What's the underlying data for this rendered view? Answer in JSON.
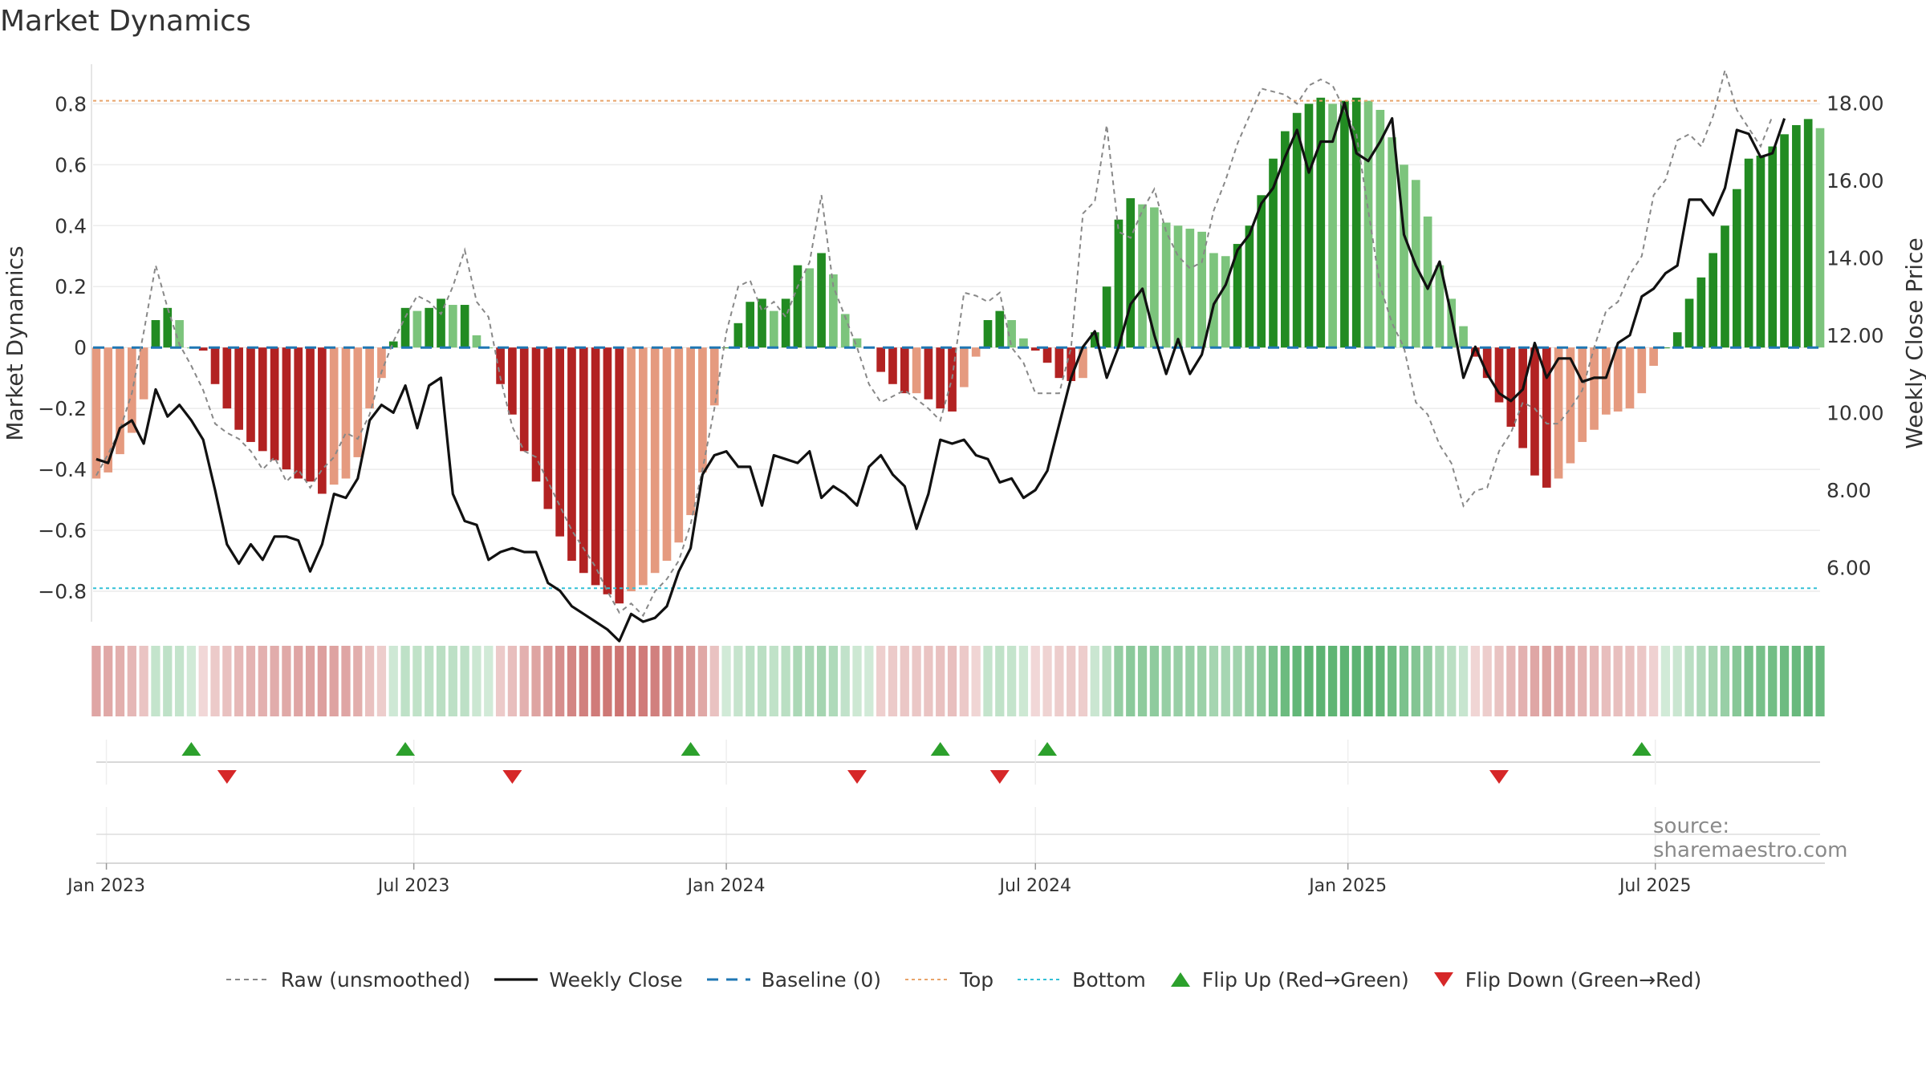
{
  "title": "Market Dynamics",
  "source": "source: sharemaestro.com",
  "colors": {
    "bar_green_dark": "#228b22",
    "bar_green_light": "#7cc47c",
    "bar_red_dark": "#b22222",
    "bar_red_light": "#e59a7f",
    "raw_line": "#888888",
    "close_line": "#111111",
    "baseline": "#1f77b4",
    "top_line": "#e8a46a",
    "bottom_line": "#33c0d6",
    "flip_up": "#2ca02c",
    "flip_down": "#d62728"
  },
  "legend": [
    {
      "key": "raw",
      "label": "Raw (unsmoothed)"
    },
    {
      "key": "close",
      "label": "Weekly Close"
    },
    {
      "key": "baseline",
      "label": "Baseline (0)"
    },
    {
      "key": "top",
      "label": "Top"
    },
    {
      "key": "bottom",
      "label": "Bottom"
    },
    {
      "key": "flipup",
      "label": "Flip Up (Red→Green)"
    },
    {
      "key": "flipdown",
      "label": "Flip Down (Green→Red)"
    }
  ],
  "chart_data": {
    "type": "bar",
    "title": "Market Dynamics",
    "ylabel": "Market Dynamics",
    "y2label": "Weekly Close Price",
    "ylim": [
      -0.9,
      0.93
    ],
    "y2lim": [
      4.6,
      19.0
    ],
    "yticks": [
      "0.8",
      "0.6",
      "0.4",
      "0.2",
      "0",
      "−0.2",
      "−0.4",
      "−0.6",
      "−0.8"
    ],
    "ytick_values": [
      0.8,
      0.6,
      0.4,
      0.2,
      0,
      -0.2,
      -0.4,
      -0.6,
      -0.8
    ],
    "y2ticks": [
      "18.00",
      "16.00",
      "14.00",
      "12.00",
      "10.00",
      "8.00",
      "6.00"
    ],
    "y2tick_values": [
      18,
      16,
      14,
      12,
      10,
      8,
      6
    ],
    "x_start": "2022-12-26",
    "x_step_days": 7,
    "x_domain": [
      "2022-12-27",
      "2025-10-06"
    ],
    "xticks": [
      {
        "label": "Jan 2023",
        "date": "2023-01-01"
      },
      {
        "label": "Jul 2023",
        "date": "2023-07-01"
      },
      {
        "label": "Jan 2024",
        "date": "2024-01-01"
      },
      {
        "label": "Jul 2024",
        "date": "2024-07-01"
      },
      {
        "label": "Jan 2025",
        "date": "2025-01-01"
      },
      {
        "label": "Jul 2025",
        "date": "2025-07-01"
      }
    ],
    "top": 0.81,
    "bottom": -0.79,
    "baseline": 0,
    "series": [
      {
        "name": "Raw (unsmoothed)",
        "values": [
          -0.42,
          -0.35,
          -0.27,
          -0.15,
          0.05,
          0.27,
          0.13,
          0.01,
          -0.06,
          -0.14,
          -0.25,
          -0.28,
          -0.3,
          -0.34,
          -0.4,
          -0.36,
          -0.44,
          -0.4,
          -0.46,
          -0.4,
          -0.36,
          -0.28,
          -0.3,
          -0.22,
          -0.08,
          0.02,
          0.1,
          0.17,
          0.15,
          0.11,
          0.2,
          0.32,
          0.15,
          0.1,
          -0.1,
          -0.26,
          -0.34,
          -0.36,
          -0.44,
          -0.52,
          -0.6,
          -0.66,
          -0.72,
          -0.8,
          -0.87,
          -0.84,
          -0.88,
          -0.8,
          -0.76,
          -0.7,
          -0.58,
          -0.4,
          -0.2,
          0.05,
          0.2,
          0.22,
          0.12,
          0.15,
          0.1,
          0.2,
          0.28,
          0.5,
          0.2,
          0.1,
          0.0,
          -0.12,
          -0.18,
          -0.16,
          -0.14,
          -0.17,
          -0.2,
          -0.24,
          -0.1,
          0.18,
          0.17,
          0.15,
          0.18,
          0.0,
          -0.05,
          -0.15,
          -0.15,
          -0.15,
          0.0,
          0.44,
          0.48,
          0.73,
          0.38,
          0.36,
          0.45,
          0.52,
          0.38,
          0.3,
          0.26,
          0.28,
          0.45,
          0.55,
          0.67,
          0.76,
          0.85,
          0.84,
          0.83,
          0.8,
          0.86,
          0.88,
          0.86,
          0.78,
          0.7,
          0.45,
          0.2,
          0.08,
          0.0,
          -0.18,
          -0.22,
          -0.32,
          -0.38,
          -0.52,
          -0.47,
          -0.46,
          -0.34,
          -0.28,
          -0.18,
          -0.2,
          -0.25,
          -0.25,
          -0.2,
          -0.14,
          0.0,
          0.12,
          0.15,
          0.24,
          0.3,
          0.5,
          0.55,
          0.68,
          0.7,
          0.66,
          0.76,
          0.91,
          0.78,
          0.72,
          0.66,
          0.76
        ]
      },
      {
        "name": "Weekly Close",
        "values": [
          8.8,
          8.7,
          9.6,
          9.8,
          9.2,
          10.6,
          9.9,
          10.2,
          9.8,
          9.3,
          8.0,
          6.6,
          6.1,
          6.6,
          6.2,
          6.8,
          6.8,
          6.7,
          5.9,
          6.6,
          7.9,
          7.8,
          8.3,
          9.8,
          10.2,
          10.0,
          10.7,
          9.6,
          10.7,
          10.9,
          7.9,
          7.2,
          7.1,
          6.2,
          6.4,
          6.5,
          6.4,
          6.4,
          5.6,
          5.4,
          5.0,
          4.8,
          4.6,
          4.4,
          4.1,
          4.8,
          4.6,
          4.7,
          5.0,
          5.9,
          6.5,
          8.4,
          8.9,
          9.0,
          8.6,
          8.6,
          7.6,
          8.9,
          8.8,
          8.7,
          9.0,
          7.8,
          8.1,
          7.9,
          7.6,
          8.6,
          8.9,
          8.4,
          8.1,
          7.0,
          7.9,
          9.3,
          9.2,
          9.3,
          8.9,
          8.8,
          8.2,
          8.3,
          7.8,
          8.0,
          8.5,
          9.7,
          10.9,
          11.7,
          12.1,
          10.9,
          11.7,
          12.8,
          13.2,
          12.0,
          11.0,
          11.9,
          11.0,
          11.5,
          12.8,
          13.3,
          14.2,
          14.6,
          15.4,
          15.8,
          16.6,
          17.3,
          16.2,
          17.0,
          17.0,
          18.0,
          16.7,
          16.5,
          17.0,
          17.6,
          14.6,
          13.8,
          13.2,
          13.9,
          12.5,
          10.9,
          11.7,
          11.0,
          10.5,
          10.3,
          10.6,
          11.8,
          10.9,
          11.4,
          11.4,
          10.8,
          10.9,
          10.9,
          11.8,
          12.0,
          13.0,
          13.2,
          13.6,
          13.8,
          15.5,
          15.5,
          15.1,
          15.8,
          17.3,
          17.2,
          16.6,
          16.7,
          17.6
        ]
      },
      {
        "name": "Market Dynamics",
        "values": [
          -0.43,
          -0.41,
          -0.35,
          -0.28,
          -0.17,
          0.09,
          0.13,
          0.09,
          0.0,
          -0.01,
          -0.12,
          -0.2,
          -0.27,
          -0.31,
          -0.34,
          -0.37,
          -0.4,
          -0.43,
          -0.44,
          -0.48,
          -0.45,
          -0.43,
          -0.36,
          -0.2,
          -0.1,
          0.02,
          0.13,
          0.12,
          0.13,
          0.16,
          0.14,
          0.14,
          0.04,
          0.0,
          -0.12,
          -0.22,
          -0.34,
          -0.44,
          -0.53,
          -0.62,
          -0.7,
          -0.74,
          -0.78,
          -0.81,
          -0.84,
          -0.8,
          -0.78,
          -0.74,
          -0.7,
          -0.64,
          -0.55,
          -0.41,
          -0.19,
          0.0,
          0.08,
          0.15,
          0.16,
          0.12,
          0.16,
          0.27,
          0.26,
          0.31,
          0.24,
          0.11,
          0.03,
          0.0,
          -0.08,
          -0.12,
          -0.15,
          -0.15,
          -0.17,
          -0.2,
          -0.21,
          -0.13,
          -0.03,
          0.09,
          0.12,
          0.09,
          0.03,
          -0.01,
          -0.05,
          -0.1,
          -0.11,
          -0.1,
          0.05,
          0.2,
          0.42,
          0.49,
          0.47,
          0.46,
          0.41,
          0.4,
          0.39,
          0.38,
          0.31,
          0.3,
          0.34,
          0.4,
          0.5,
          0.62,
          0.71,
          0.77,
          0.8,
          0.82,
          0.8,
          0.81,
          0.82,
          0.81,
          0.78,
          0.69,
          0.6,
          0.55,
          0.43,
          0.27,
          0.16,
          0.07,
          -0.03,
          -0.1,
          -0.18,
          -0.26,
          -0.33,
          -0.42,
          -0.46,
          -0.43,
          -0.38,
          -0.31,
          -0.27,
          -0.22,
          -0.21,
          -0.2,
          -0.15,
          -0.06,
          0.0,
          0.05,
          0.16,
          0.23,
          0.31,
          0.4,
          0.52,
          0.62,
          0.63,
          0.66,
          0.7,
          0.73,
          0.75,
          0.72
        ]
      }
    ],
    "flips_up": [
      "2023-02-20",
      "2023-06-26",
      "2023-12-11",
      "2024-05-06",
      "2024-07-08",
      "2025-06-23"
    ],
    "flips_down": [
      "2023-03-13",
      "2023-08-28",
      "2024-03-18",
      "2024-06-10",
      "2025-03-31"
    ]
  }
}
